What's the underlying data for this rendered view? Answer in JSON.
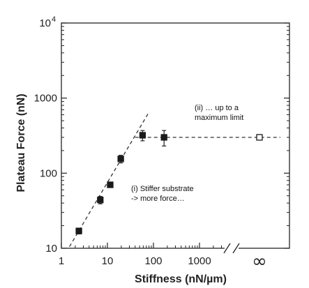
{
  "chart_data": {
    "type": "scatter",
    "title": "",
    "xlabel": "Stiffness (nN/µm)",
    "ylabel": "Plateau Force (nN)",
    "x_scale": "log",
    "y_scale": "log",
    "xlim": [
      1,
      10000
    ],
    "ylim": [
      10,
      10000
    ],
    "x_ticks": [
      {
        "value": 1,
        "label": "1"
      },
      {
        "value": 10,
        "label": "10"
      },
      {
        "value": 100,
        "label": "100"
      },
      {
        "value": 1000,
        "label": "1000"
      }
    ],
    "x_break_label": "∞",
    "y_ticks": [
      {
        "value": 10,
        "label": "10"
      },
      {
        "value": 100,
        "label": "100"
      },
      {
        "value": 1000,
        "label": "1000"
      },
      {
        "value": 10000,
        "label": "10",
        "exponent": "4"
      }
    ],
    "grid": false,
    "points": [
      {
        "x": 2.4,
        "y": 17,
        "err": 1.5
      },
      {
        "x": 7,
        "y": 44,
        "err": 5
      },
      {
        "x": 11.5,
        "y": 70,
        "err": 4
      },
      {
        "x": 19.5,
        "y": 155,
        "err": 18
      },
      {
        "x": 58,
        "y": 320,
        "err": 50
      },
      {
        "x": 170,
        "y": 300,
        "err": 70
      }
    ],
    "infinite_point": {
      "x": "∞",
      "y": 300,
      "err": 15,
      "marker": "open-square"
    },
    "fit_lines": [
      {
        "style": "dashed",
        "x": [
          1.5,
          80
        ],
        "y": [
          10.5,
          650
        ]
      },
      {
        "style": "dashed",
        "x": [
          40,
          "∞"
        ],
        "y": [
          300,
          300
        ]
      }
    ],
    "annotations": [
      {
        "id": "stiffer",
        "lines": [
          "(i) Stiffer substrate",
          "-> more force…"
        ]
      },
      {
        "id": "maximum",
        "lines": [
          "(ii) … up to a",
          "maximum limit"
        ]
      }
    ]
  }
}
